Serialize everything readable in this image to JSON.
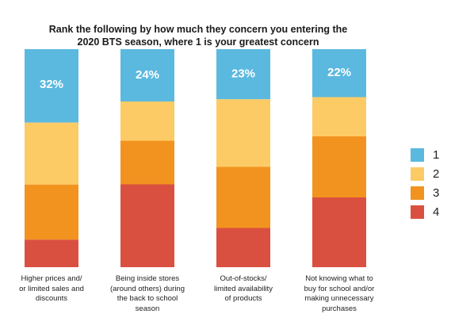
{
  "chart_data": {
    "type": "bar",
    "stacked": true,
    "percent_stacked": true,
    "title_lines": [
      "Rank the following by how much they concern you entering the",
      "2020 BTS season, where 1 is your greatest concern"
    ],
    "categories": [
      [
        "Higher prices and/",
        "or limited sales and",
        "discounts"
      ],
      [
        "Being inside stores",
        "(around others) during",
        "the back to school",
        "season"
      ],
      [
        "Out-of-stocks/",
        "limited availability",
        "of products"
      ],
      [
        "Not knowing what to",
        "buy for school and/or",
        "making unnecessary",
        "purchases"
      ]
    ],
    "series": [
      {
        "name": "1",
        "color": "#5bb9df",
        "values": [
          32,
          24,
          23,
          22
        ]
      },
      {
        "name": "2",
        "color": "#fccb66",
        "values": [
          27,
          18,
          31,
          18
        ]
      },
      {
        "name": "3",
        "color": "#f2931f",
        "values": [
          24,
          20,
          28,
          28
        ]
      },
      {
        "name": "4",
        "color": "#da5040",
        "values": [
          12,
          38,
          18,
          32
        ]
      }
    ],
    "data_labels": [
      "32%",
      "24%",
      "23%",
      "22%"
    ],
    "ylim": [
      0,
      100
    ],
    "grid": false,
    "legend_position": "right"
  }
}
